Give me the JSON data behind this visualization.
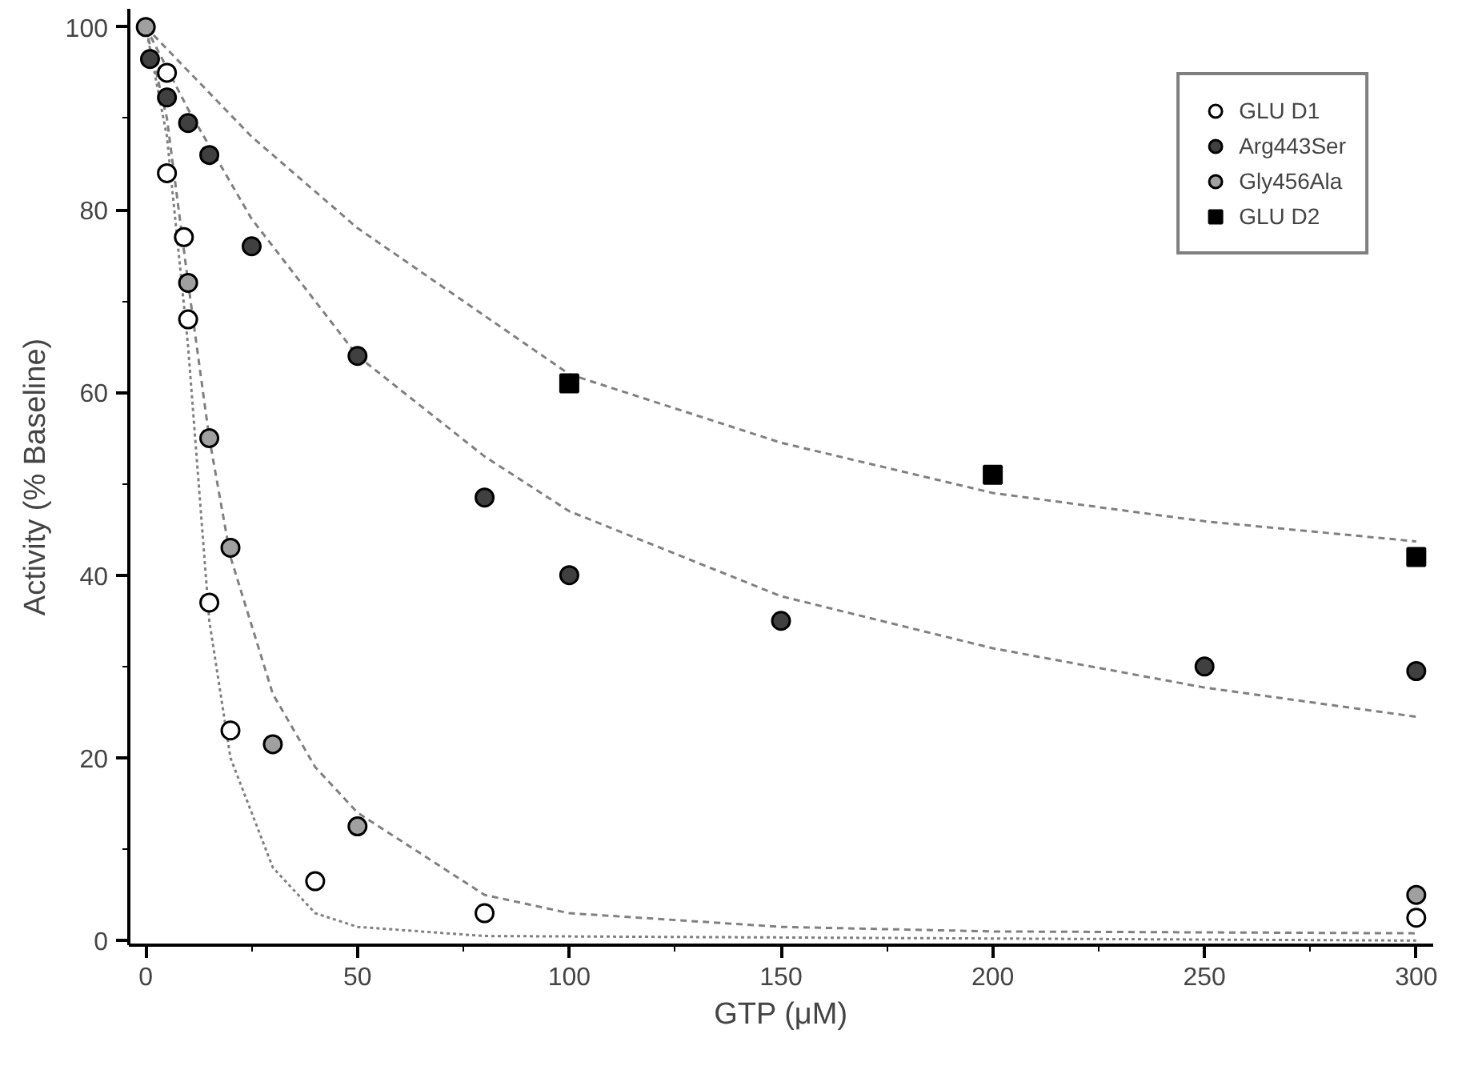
{
  "chart_data": {
    "type": "scatter",
    "xlabel": "GTP (μM)",
    "ylabel": "Activity (% Baseline)",
    "xlim": [
      -4,
      304
    ],
    "ylim": [
      -0.5,
      102
    ],
    "xticks": [
      0,
      {
        "value": 25,
        "label": null
      },
      50,
      {
        "value": 75,
        "label": null
      },
      100,
      {
        "value": 125,
        "label": null
      },
      150,
      {
        "value": 175,
        "label": null
      },
      200,
      {
        "value": 225,
        "label": null
      },
      250,
      {
        "value": 275,
        "label": null
      },
      300
    ],
    "yticks": [
      0,
      {
        "value": 10,
        "label": null
      },
      20,
      {
        "value": 30,
        "label": null
      },
      40,
      {
        "value": 50,
        "label": null
      },
      60,
      {
        "value": 70,
        "label": null
      },
      80,
      {
        "value": 90,
        "label": null
      },
      100
    ],
    "grid": false,
    "legend": "top right",
    "marker": "circle",
    "series": [
      {
        "name": "GLU D1",
        "color": "#ffffff",
        "x": [
          5,
          5,
          9,
          10,
          15,
          20,
          40,
          80,
          300
        ],
        "values": [
          95,
          84,
          77,
          68,
          37,
          23,
          6.5,
          3,
          2.5
        ]
      },
      {
        "name": "Arg443Ser",
        "color": "#404040",
        "x": [
          1,
          5,
          10,
          15,
          25,
          50,
          80,
          100,
          150,
          250,
          300
        ],
        "values": [
          96.5,
          92.3,
          89.5,
          86,
          76,
          64,
          48.5,
          40,
          35,
          30,
          29.5
        ]
      },
      {
        "name": "Gly456Ala",
        "color": "#a0a0a0",
        "x": [
          0,
          10,
          15,
          20,
          30,
          50,
          300
        ],
        "values": [
          100,
          72,
          55,
          43,
          21.5,
          12.5,
          5
        ]
      },
      {
        "name": "GLU D2",
        "color": "#000000",
        "marker": "square",
        "x": [
          100,
          200,
          300
        ],
        "values": [
          61,
          51,
          42
        ]
      },
      {
        "type": "line",
        "marker": "none",
        "color": "#808080",
        "line_style": "dashed",
        "x": [
          0,
          25,
          50,
          100,
          150,
          200,
          250,
          300
        ],
        "values": [
          100,
          88,
          78,
          62,
          54.5,
          49,
          45.9,
          43.7
        ]
      },
      {
        "type": "line",
        "marker": "none",
        "color": "#808080",
        "line_style": "dashed",
        "x": [
          0,
          10,
          25,
          50,
          80,
          100,
          150,
          200,
          250,
          300
        ],
        "values": [
          100,
          91,
          79,
          64,
          53,
          47,
          37.7,
          32,
          27.7,
          24.5
        ]
      },
      {
        "type": "line",
        "marker": "none",
        "color": "#808080",
        "line_style": "dashed",
        "x": [
          0,
          5,
          10,
          15,
          20,
          30,
          40,
          50,
          80,
          100,
          150,
          200,
          300
        ],
        "values": [
          100,
          90,
          72,
          55,
          42,
          27,
          19,
          14,
          5,
          3,
          1.5,
          1,
          0.8
        ]
      },
      {
        "type": "line",
        "marker": "none",
        "color": "#808080",
        "line_style": "dotted",
        "x": [
          0,
          5,
          10,
          15,
          20,
          30,
          40,
          50,
          80,
          300
        ],
        "values": [
          100,
          88,
          65,
          35,
          20,
          8,
          3,
          1.5,
          0.5,
          0
        ]
      }
    ]
  }
}
